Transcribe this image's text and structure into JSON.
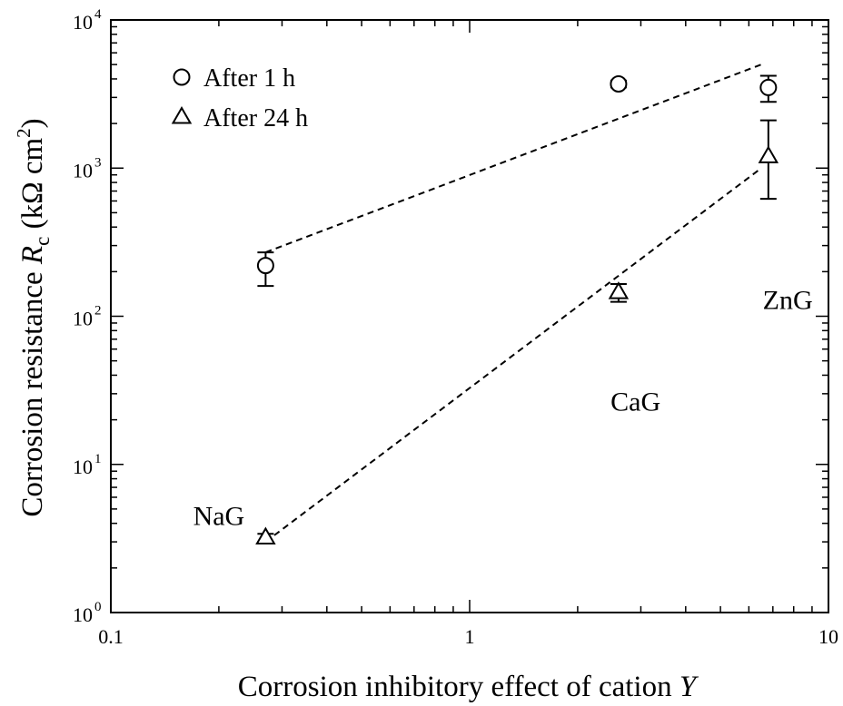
{
  "chart_data": {
    "type": "scatter",
    "title": "",
    "xlabel": {
      "main": "Corrosion inhibitory effect of cation ",
      "var": "Y"
    },
    "ylabel": {
      "main": "Corrosion resistance ",
      "var": "R",
      "sub": "c",
      "unit_open": " (kΩ cm",
      "unit_sup": "2",
      "unit_close": ")"
    },
    "x_scale": "log",
    "y_scale": "log",
    "xlim": [
      0.1,
      10
    ],
    "ylim": [
      1,
      10000
    ],
    "x_ticks": [
      {
        "value": 0.1,
        "label": "0.1"
      },
      {
        "value": 1,
        "label": "1"
      },
      {
        "value": 10,
        "label": "10"
      }
    ],
    "y_ticks": [
      {
        "value": 1,
        "base": "10",
        "exp": "0"
      },
      {
        "value": 10,
        "base": "10",
        "exp": "1"
      },
      {
        "value": 100,
        "base": "10",
        "exp": "2"
      },
      {
        "value": 1000,
        "base": "10",
        "exp": "3"
      },
      {
        "value": 10000,
        "base": "10",
        "exp": "4"
      }
    ],
    "grid": false,
    "legend_position": "top-left",
    "series": [
      {
        "name": "After 1 h",
        "marker": "circle",
        "points": [
          {
            "x": 0.27,
            "y": 220,
            "err_low": 160,
            "err_high": 270
          },
          {
            "x": 2.6,
            "y": 3700,
            "err_low": 3500,
            "err_high": 3900
          },
          {
            "x": 6.8,
            "y": 3500,
            "err_low": 2800,
            "err_high": 4200
          }
        ],
        "fit_line": [
          {
            "x": 0.27,
            "y": 270
          },
          {
            "x": 6.5,
            "y": 5000
          }
        ]
      },
      {
        "name": "After 24 h",
        "marker": "triangle",
        "points": [
          {
            "x": 0.27,
            "y": 3.2,
            "err_low": 3.0,
            "err_high": 3.4
          },
          {
            "x": 2.6,
            "y": 145,
            "err_low": 125,
            "err_high": 165
          },
          {
            "x": 6.8,
            "y": 1200,
            "err_low": 620,
            "err_high": 2100
          }
        ],
        "fit_line": [
          {
            "x": 0.27,
            "y": 3.0
          },
          {
            "x": 6.5,
            "y": 1000
          }
        ]
      }
    ],
    "annotations": [
      {
        "text": "NaG",
        "x": 0.2,
        "y": 3.9
      },
      {
        "text": "CaG",
        "x": 2.9,
        "y": 23
      },
      {
        "text": "ZnG",
        "x": 7.7,
        "y": 112
      }
    ]
  }
}
